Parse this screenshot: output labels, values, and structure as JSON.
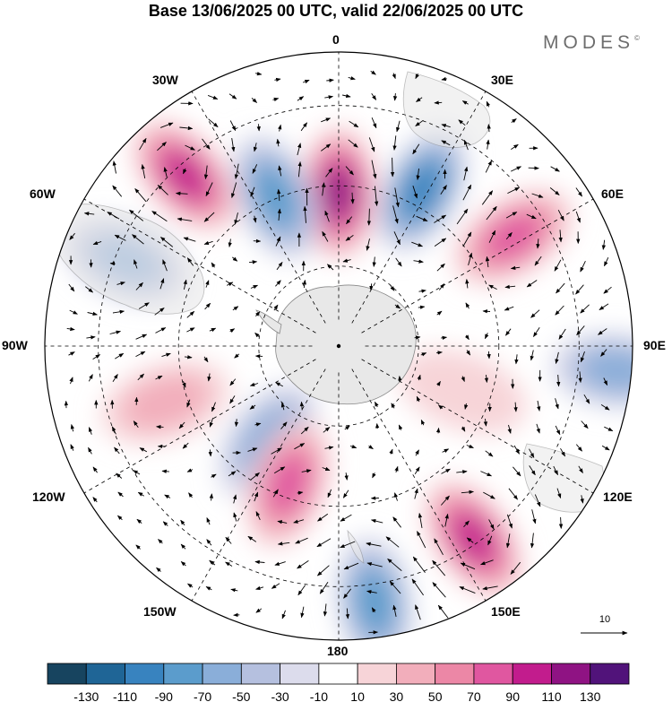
{
  "header": {
    "title": "Base 13/06/2025 00 UTC, valid 22/06/2025 00 UTC",
    "brand": "MODES",
    "brand_mark": "©"
  },
  "map": {
    "projection": "south-polar-stereographic",
    "center": "South Pole",
    "longitude_labels": [
      {
        "key": "0",
        "text": "0"
      },
      {
        "key": "30E",
        "text": "30E"
      },
      {
        "key": "60E",
        "text": "60E"
      },
      {
        "key": "90E",
        "text": "90E"
      },
      {
        "key": "120E",
        "text": "120E"
      },
      {
        "key": "150E",
        "text": "150E"
      },
      {
        "key": "180",
        "text": "180"
      },
      {
        "key": "150W",
        "text": "150W"
      },
      {
        "key": "120W",
        "text": "120W"
      },
      {
        "key": "90W",
        "text": "90W"
      },
      {
        "key": "60W",
        "text": "60W"
      },
      {
        "key": "30W",
        "text": "30W"
      }
    ],
    "anomalies": [
      {
        "lon": 0,
        "colat": 0.52,
        "value": 110
      },
      {
        "lon": -23,
        "colat": 0.55,
        "value": -80
      },
      {
        "lon": 28,
        "colat": 0.6,
        "value": -90
      },
      {
        "lon": -42,
        "colat": 0.78,
        "value": 90
      },
      {
        "lon": 58,
        "colat": 0.7,
        "value": 70
      },
      {
        "lon": -68,
        "colat": 0.78,
        "value": -60
      },
      {
        "lon": 95,
        "colat": 0.95,
        "value": -50
      },
      {
        "lon": -108,
        "colat": 0.62,
        "value": 30
      },
      {
        "lon": -143,
        "colat": 0.4,
        "value": -60
      },
      {
        "lon": -160,
        "colat": 0.5,
        "value": 70
      },
      {
        "lon": 145,
        "colat": 0.8,
        "value": 100
      },
      {
        "lon": 172,
        "colat": 0.88,
        "value": -80
      },
      {
        "lon": 110,
        "colat": 0.45,
        "value": 20
      }
    ],
    "reference_vector": {
      "value": "10"
    }
  },
  "colorbar": {
    "colors": [
      "#17445f",
      "#1f6596",
      "#3883bf",
      "#5b9ccc",
      "#8aaed9",
      "#b5c0df",
      "#dcdcec",
      "#ffffff",
      "#f7d4d8",
      "#f2aebb",
      "#ec87a6",
      "#e057a0",
      "#c21c8d",
      "#8f1383",
      "#51137a"
    ],
    "tick_labels": [
      "-130",
      "-110",
      "-90",
      "-70",
      "-50",
      "-30",
      "-10",
      "10",
      "30",
      "50",
      "70",
      "90",
      "110",
      "130"
    ]
  }
}
